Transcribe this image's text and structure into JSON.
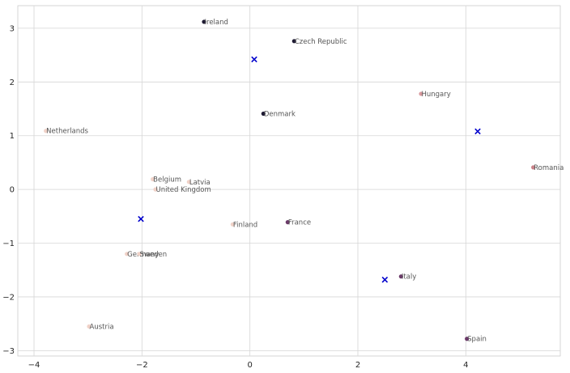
{
  "chart_data": {
    "type": "scatter",
    "xlim": [
      -4.3,
      5.75
    ],
    "ylim": [
      -3.1,
      3.42
    ],
    "grid": true,
    "x_ticks": [
      -4,
      -2,
      0,
      2,
      4
    ],
    "y_ticks": [
      -3,
      -2,
      -1,
      0,
      1,
      2,
      3
    ],
    "x_tick_labels": [
      "−4",
      "−2",
      "0",
      "2",
      "4"
    ],
    "y_tick_labels": [
      "−3",
      "−2",
      "−1",
      "0",
      "1",
      "2",
      "3"
    ],
    "points": [
      {
        "label": "Ireland",
        "x": -0.85,
        "y": 3.12,
        "color": "#1e1a33"
      },
      {
        "label": "Czech Republic",
        "x": 0.82,
        "y": 2.76,
        "color": "#1e1a33"
      },
      {
        "label": "Hungary",
        "x": 3.17,
        "y": 1.78,
        "color": "#d99a9f"
      },
      {
        "label": "Denmark",
        "x": 0.25,
        "y": 1.41,
        "color": "#1e1a33"
      },
      {
        "label": "Netherlands",
        "x": -3.78,
        "y": 1.09,
        "color": "#f0d2c8"
      },
      {
        "label": "Romania",
        "x": 5.25,
        "y": 0.41,
        "color": "#c98188"
      },
      {
        "label": "Belgium",
        "x": -1.8,
        "y": 0.19,
        "color": "#f0d2c8"
      },
      {
        "label": "Latvia",
        "x": -1.13,
        "y": 0.14,
        "color": "#f0d2c8"
      },
      {
        "label": "United Kingdom",
        "x": -1.75,
        "y": 0.0,
        "color": "#f0d2c8"
      },
      {
        "label": "France",
        "x": 0.7,
        "y": -0.61,
        "color": "#6b3a69"
      },
      {
        "label": "Finland",
        "x": -0.32,
        "y": -0.65,
        "color": "#f0d2c8"
      },
      {
        "label": "Germany",
        "x": -2.28,
        "y": -1.2,
        "color": "#f0d2c8"
      },
      {
        "label": "Sweden",
        "x": -2.05,
        "y": -1.2,
        "color": "#f0d2c8"
      },
      {
        "label": "Italy",
        "x": 2.8,
        "y": -1.62,
        "color": "#6b3a69"
      },
      {
        "label": "Austria",
        "x": -2.98,
        "y": -2.55,
        "color": "#f0d2c8"
      },
      {
        "label": "Spain",
        "x": 4.02,
        "y": -2.78,
        "color": "#6b3a69"
      }
    ],
    "centroids": [
      {
        "x": 0.08,
        "y": 2.42
      },
      {
        "x": 4.22,
        "y": 1.08
      },
      {
        "x": -2.02,
        "y": -0.55
      },
      {
        "x": 2.5,
        "y": -1.68
      }
    ],
    "centroid_color": "#0000cc"
  }
}
